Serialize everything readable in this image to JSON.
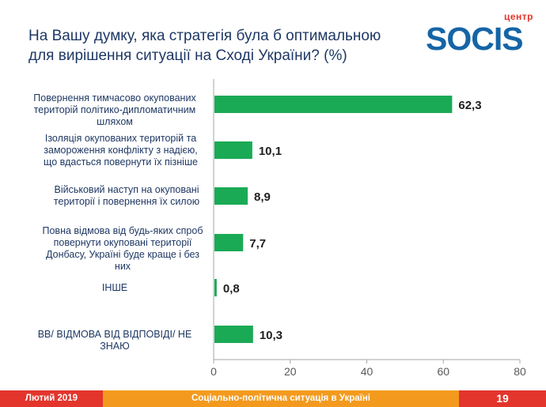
{
  "header": {
    "title": "На Вашу думку, яка стратегія була б оптимальною для вирішення ситуації на Сході України? (%)",
    "logo_top": "центр",
    "logo_main": "SOCIS"
  },
  "chart_data": {
    "type": "bar",
    "orientation": "horizontal",
    "categories": [
      "Повернення тимчасово окупованих територій політико-дипломатичним шляхом",
      "Ізоляція окупованих територій та замороження конфлікту з надією, що вдасться повернути їх пізніше",
      "Військовий наступ на окуповані території і повернення їх силою",
      "Повна відмова від будь-яких спроб повернути окуповані території Донбасу, Україні буде краще і без них",
      "ІНШЕ",
      "ВВ/ ВІДМОВА ВІД ВІДПОВІДІ/ НЕ ЗНАЮ"
    ],
    "values": [
      62.3,
      10.1,
      8.9,
      7.7,
      0.8,
      10.3
    ],
    "value_labels": [
      "62,3",
      "10,1",
      "8,9",
      "7,7",
      "0,8",
      "10,3"
    ],
    "xlim": [
      0,
      80
    ],
    "xticks": [
      0,
      20,
      40,
      60,
      80
    ],
    "xtick_labels": [
      "0",
      "20",
      "40",
      "60",
      "80"
    ],
    "bar_color": "#1aaa55",
    "grid": false
  },
  "footer": {
    "date": "Лютий 2019",
    "subject": "Соціально-політична ситуація в Україні",
    "page": "19"
  },
  "colors": {
    "brand_red": "#e3352c",
    "brand_orange": "#f39a1e",
    "brand_blue": "#1565a6",
    "text": "#1f3864"
  }
}
